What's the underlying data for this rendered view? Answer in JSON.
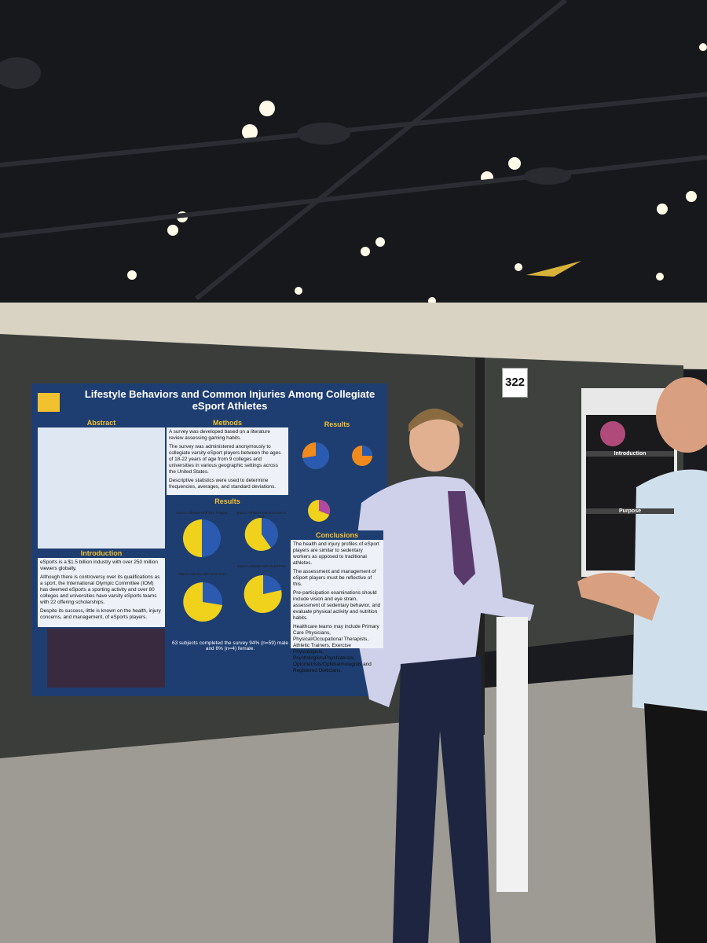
{
  "booth": {
    "number": "322"
  },
  "poster": {
    "title": "Lifestyle Behaviors and Common Injuries Among Collegiate eSport Athletes",
    "abstract": {
      "heading": "Abstract"
    },
    "methods": {
      "heading": "Methods",
      "bullets": [
        "A survey was developed based on a literature review assessing gaming habits.",
        "The survey was administered anonymously to collegiate varsity eSport players between the ages of 18-22 years of age from 9 colleges and universities in various geographic settings across the United States.",
        "Descriptive statistics were used to determine frequencies, averages, and standard deviations."
      ]
    },
    "results_middle": {
      "heading": "Results",
      "charts": [
        "eSport Athletes with Eye Fatigue",
        "eSport Athletes with Back/Neck Pain",
        "eSport Athletes with Wrist Pain",
        "eSport Athletes with Hand Pain"
      ],
      "summary": "63 subjects completed the survey 94% (n=59) male and 6% (n=4) female."
    },
    "introduction": {
      "heading": "Introduction",
      "paragraphs": [
        "eSports is a $1.5 billion industry with over 250 million viewers globally.",
        "Although there is controversy over its qualifications as a sport, the International Olympic Committee (IOM) has deemed eSports a sporting activity and over 80 colleges and universities have varsity eSports teams with 22 offering scholarships.",
        "Despite its success, little is known on the health, injury concerns, and management, of eSports players."
      ]
    },
    "results_right": {
      "heading": "Results"
    },
    "conclusions": {
      "heading": "Conclusions",
      "bullets": [
        "The health and injury profiles of eSport players are similar to sedentary workers as opposed to traditional athletes.",
        "The assessment and management of eSport players must be reflective of this.",
        "Pre-participation examinations should include vision and eye strain, assessment of sedentary behavior, and evaluate physical activity and nutrition habits.",
        "Healthcare teams may include Primary Care Physicians, Physical/Occupational Therapists, Athletic Trainers, Exercise Physiologists, Psychologists/Psychiatrists, Optometrists/Ophthalmologists and Registered Dieticians."
      ]
    }
  },
  "side_poster": {
    "sections": [
      "Introduction",
      "Purpose"
    ]
  }
}
